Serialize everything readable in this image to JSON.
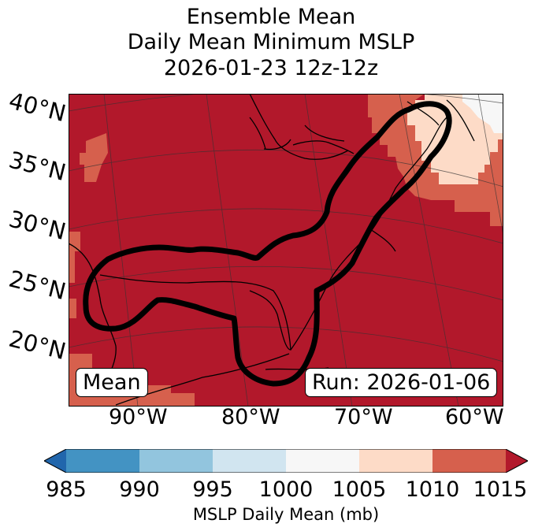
{
  "title": {
    "line1": "Ensemble Mean",
    "line2": "Daily Mean Minimum MSLP",
    "line3": "2026-01-23 12z-12z"
  },
  "map": {
    "lat_labels": [
      "40°N",
      "35°N",
      "30°N",
      "25°N",
      "20°N"
    ],
    "lon_labels": [
      "90°W",
      "80°W",
      "70°W",
      "60°W"
    ],
    "left_badge": "Mean",
    "right_badge": "Run: 2026-01-06"
  },
  "colorbar": {
    "label": "MSLP Daily Mean (mb)",
    "ticks": [
      "985",
      "990",
      "995",
      "1000",
      "1005",
      "1010",
      "1015"
    ],
    "bins": [
      {
        "range": "<985",
        "color": "#2166ac"
      },
      {
        "range": "985-990",
        "color": "#4393c3"
      },
      {
        "range": "990-995",
        "color": "#92c5de"
      },
      {
        "range": "995-1000",
        "color": "#d1e5f0"
      },
      {
        "range": "1000-1005",
        "color": "#f7f7f7"
      },
      {
        "range": "1005-1010",
        "color": "#fddbc7"
      },
      {
        "range": "1010-1015",
        "color": "#d6604d"
      },
      {
        "range": ">1015",
        "color": "#b2182b"
      }
    ]
  }
}
